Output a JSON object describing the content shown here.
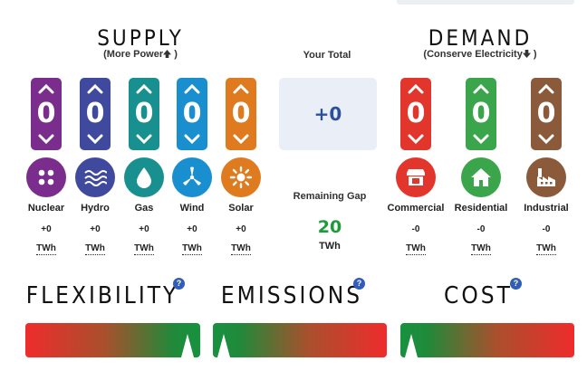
{
  "supply": {
    "title": "SUPPLY",
    "subtitle": "(More Power",
    "subtitle_end": ")",
    "sources": [
      {
        "name": "Nuclear",
        "count": "0",
        "value": "+0",
        "unit": "TWh",
        "color": "#7b2d8e",
        "icon": "nuclear-icon"
      },
      {
        "name": "Hydro",
        "count": "0",
        "value": "+0",
        "unit": "TWh",
        "color": "#3f4a9e",
        "icon": "waves-icon"
      },
      {
        "name": "Gas",
        "count": "0",
        "value": "+0",
        "unit": "TWh",
        "color": "#17908f",
        "icon": "droplet-icon"
      },
      {
        "name": "Wind",
        "count": "0",
        "value": "+0",
        "unit": "TWh",
        "color": "#1a8fd0",
        "icon": "turbine-icon"
      },
      {
        "name": "Solar",
        "count": "0",
        "value": "+0",
        "unit": "TWh",
        "color": "#df7a1f",
        "icon": "sun-icon"
      }
    ]
  },
  "demand": {
    "title": "DEMAND",
    "subtitle": "(Conserve Electricity",
    "subtitle_end": ")",
    "sectors": [
      {
        "name": "Commercial",
        "count": "0",
        "value": "-0",
        "unit": "TWh",
        "color": "#e2352b",
        "icon": "store-icon"
      },
      {
        "name": "Residential",
        "count": "0",
        "value": "-0",
        "unit": "TWh",
        "color": "#3aa54a",
        "icon": "house-icon"
      },
      {
        "name": "Industrial",
        "count": "0",
        "value": "-0",
        "unit": "TWh",
        "color": "#8b5a3a",
        "icon": "factory-icon"
      }
    ]
  },
  "total": {
    "label": "Your Total",
    "value": "+0"
  },
  "gap": {
    "label": "Remaining Gap",
    "value": "20",
    "unit": "TWh"
  },
  "meters": {
    "help_glyph": "?",
    "items": [
      {
        "title": "FLEXIBILITY",
        "level": 0.93,
        "gradient": "red-to-green"
      },
      {
        "title": "EMISSIONS",
        "level": 0.04,
        "gradient": "green-to-red"
      },
      {
        "title": "COST",
        "level": 0.04,
        "gradient": "green-to-red"
      }
    ]
  }
}
